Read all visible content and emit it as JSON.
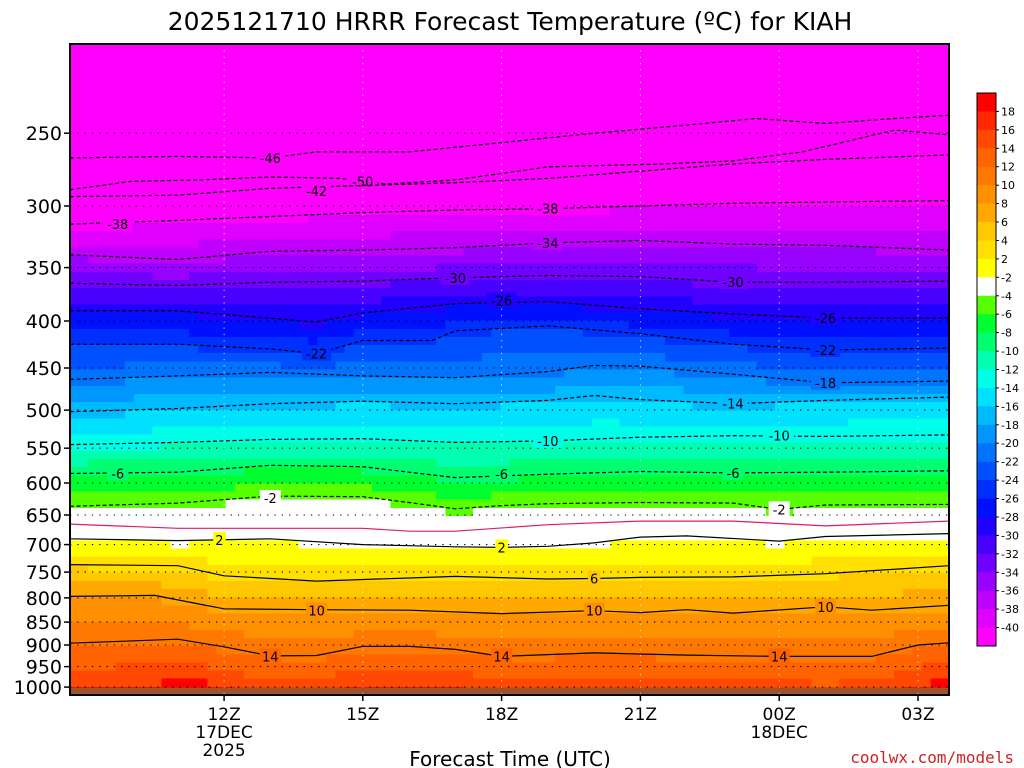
{
  "title": "2025121710 HRRR Forecast Temperature (ºC) for KIAH",
  "xlabel": "Forecast Time (UTC)",
  "watermark": "coolwx.com/models",
  "colors": {
    "watermark": "#cc2222",
    "ground": "#a0522d",
    "zero_line": "#e01a6a"
  },
  "chart_data": {
    "type": "heatmap",
    "title": "2025121710 HRRR Forecast Temperature (ºC) for KIAH",
    "xlabel": "Forecast Time (UTC)",
    "ylabel": "",
    "y_axis_reversed": true,
    "xlim_hours": [
      -3.33,
      15.67
    ],
    "ylim_hpa": [
      1020,
      200
    ],
    "x_ticks": [
      {
        "h": 0,
        "label": "12Z",
        "sub": [
          "17DEC",
          "2025"
        ]
      },
      {
        "h": 3,
        "label": "15Z",
        "sub": []
      },
      {
        "h": 6,
        "label": "18Z",
        "sub": []
      },
      {
        "h": 9,
        "label": "21Z",
        "sub": []
      },
      {
        "h": 12,
        "label": "00Z",
        "sub": [
          "18DEC"
        ]
      },
      {
        "h": 15,
        "label": "03Z",
        "sub": []
      }
    ],
    "y_ticks": [
      250,
      300,
      350,
      400,
      450,
      500,
      550,
      600,
      650,
      700,
      750,
      800,
      850,
      900,
      950,
      1000
    ],
    "grid": true,
    "colorbar": {
      "labels": [
        18,
        16,
        14,
        12,
        10,
        8,
        6,
        4,
        2,
        -2,
        -4,
        -6,
        -8,
        -10,
        -12,
        -14,
        -16,
        -18,
        -20,
        -22,
        -24,
        -26,
        -28,
        -30,
        -32,
        -34,
        -36,
        -38,
        -40
      ],
      "colors": [
        "#ff0000",
        "#ff2800",
        "#ff4800",
        "#ff6400",
        "#ff7800",
        "#ff9000",
        "#ffa800",
        "#ffc800",
        "#ffe000",
        "#ffff00",
        "#ffffff",
        "#58ff00",
        "#00ff30",
        "#00ff70",
        "#00ffb0",
        "#00ffe8",
        "#00e0ff",
        "#00baff",
        "#0096ff",
        "#0074ff",
        "#0050ff",
        "#0030ff",
        "#0010ff",
        "#2000ff",
        "#4800ff",
        "#7000ff",
        "#9800ff",
        "#c000ff",
        "#e000ff",
        "#ff00ff"
      ]
    },
    "contours": [
      {
        "t": -50,
        "style": "dashed",
        "color": "#000000",
        "pts": [
          [
            -3.33,
            288
          ],
          [
            -2,
            282
          ],
          [
            -0.5,
            281
          ],
          [
            1,
            279
          ],
          [
            2.5,
            280
          ],
          [
            3.5,
            284
          ],
          [
            5,
            281
          ],
          [
            7,
            272
          ],
          [
            9.5,
            270
          ],
          [
            11,
            268
          ],
          [
            12.5,
            262
          ],
          [
            14.5,
            248
          ],
          [
            15.67,
            251
          ]
        ],
        "labels": [
          [
            3,
            282
          ]
        ]
      },
      {
        "t": -46,
        "style": "dashed",
        "color": "#000000",
        "pts": [
          [
            -3.33,
            266
          ],
          [
            -1,
            265
          ],
          [
            1,
            266
          ],
          [
            2,
            262
          ],
          [
            4,
            262
          ],
          [
            6,
            256
          ],
          [
            8,
            250
          ],
          [
            10,
            245
          ],
          [
            11.5,
            241
          ],
          [
            13,
            244
          ],
          [
            14.5,
            241
          ],
          [
            15.67,
            239
          ]
        ],
        "labels": [
          [
            1,
            266
          ]
        ]
      },
      {
        "t": -42,
        "style": "dashed",
        "color": "#000000",
        "pts": [
          [
            -3.33,
            293
          ],
          [
            -1,
            292
          ],
          [
            1,
            287
          ],
          [
            3,
            285
          ],
          [
            5,
            283
          ],
          [
            7,
            280
          ],
          [
            9,
            275
          ],
          [
            11,
            270
          ],
          [
            13,
            267
          ],
          [
            15.67,
            264
          ]
        ],
        "labels": [
          [
            2,
            289
          ]
        ]
      },
      {
        "t": -38,
        "style": "dashed",
        "color": "#000000",
        "pts": [
          [
            -3.33,
            314
          ],
          [
            -1,
            311
          ],
          [
            1,
            308
          ],
          [
            3,
            305
          ],
          [
            5,
            303
          ],
          [
            7,
            302
          ],
          [
            9,
            300
          ],
          [
            11,
            298
          ],
          [
            13,
            297
          ],
          [
            15.67,
            296
          ]
        ],
        "labels": [
          [
            -2.3,
            314
          ],
          [
            7,
            302
          ]
        ]
      },
      {
        "t": -34,
        "style": "dashed",
        "color": "#000000",
        "pts": [
          [
            -3.33,
            339
          ],
          [
            -1,
            343
          ],
          [
            1,
            336
          ],
          [
            3,
            335
          ],
          [
            5,
            333
          ],
          [
            7,
            329
          ],
          [
            9,
            327
          ],
          [
            11,
            330
          ],
          [
            13,
            331
          ],
          [
            15.67,
            335
          ]
        ],
        "labels": [
          [
            7,
            329
          ]
        ]
      },
      {
        "t": -30,
        "style": "dashed",
        "color": "#000000",
        "pts": [
          [
            -3.33,
            364
          ],
          [
            -1,
            366
          ],
          [
            1,
            363
          ],
          [
            3,
            362
          ],
          [
            5,
            359
          ],
          [
            7,
            357
          ],
          [
            9,
            358
          ],
          [
            11,
            363
          ],
          [
            13,
            363
          ],
          [
            15.67,
            362
          ]
        ],
        "labels": [
          [
            5,
            359
          ],
          [
            11,
            363
          ]
        ]
      },
      {
        "t": -26,
        "style": "dashed",
        "color": "#000000",
        "pts": [
          [
            -3.33,
            390
          ],
          [
            -1,
            390
          ],
          [
            2,
            401
          ],
          [
            3,
            392
          ],
          [
            5,
            383
          ],
          [
            7,
            381
          ],
          [
            9,
            388
          ],
          [
            11,
            393
          ],
          [
            13,
            397
          ],
          [
            15.67,
            397
          ]
        ],
        "labels": [
          [
            6,
            380
          ],
          [
            13,
            397
          ]
        ]
      },
      {
        "t": -22,
        "style": "dashed",
        "color": "#000000",
        "pts": [
          [
            -3.33,
            424
          ],
          [
            -1,
            424
          ],
          [
            1,
            429
          ],
          [
            2,
            434
          ],
          [
            3,
            420
          ],
          [
            4.5,
            420
          ],
          [
            5,
            410
          ],
          [
            7,
            405
          ],
          [
            9,
            413
          ],
          [
            11,
            424
          ],
          [
            13,
            430
          ],
          [
            15.67,
            428
          ]
        ],
        "labels": [
          [
            2,
            434
          ],
          [
            13,
            430
          ]
        ]
      },
      {
        "t": -18,
        "style": "dashed",
        "color": "#000000",
        "pts": [
          [
            -3.33,
            463
          ],
          [
            -1,
            459
          ],
          [
            1,
            455
          ],
          [
            3,
            459
          ],
          [
            5,
            461
          ],
          [
            7,
            454
          ],
          [
            8,
            447
          ],
          [
            9,
            448
          ],
          [
            11,
            457
          ],
          [
            13,
            467
          ],
          [
            15.67,
            465
          ]
        ],
        "labels": [
          [
            13,
            467
          ]
        ]
      },
      {
        "t": -14,
        "style": "dashed",
        "color": "#000000",
        "pts": [
          [
            -3.33,
            502
          ],
          [
            -1,
            498
          ],
          [
            1,
            492
          ],
          [
            3,
            489
          ],
          [
            5,
            492
          ],
          [
            7,
            488
          ],
          [
            8,
            482
          ],
          [
            9,
            487
          ],
          [
            11,
            492
          ],
          [
            13,
            488
          ],
          [
            15.67,
            484
          ]
        ],
        "labels": [
          [
            11,
            492
          ]
        ]
      },
      {
        "t": -10,
        "style": "dashed",
        "color": "#000000",
        "pts": [
          [
            -3.33,
            545
          ],
          [
            -1,
            542
          ],
          [
            1,
            538
          ],
          [
            3,
            537
          ],
          [
            5,
            542
          ],
          [
            7,
            540
          ],
          [
            9,
            535
          ],
          [
            11,
            533
          ],
          [
            13,
            534
          ],
          [
            15.67,
            532
          ]
        ],
        "labels": [
          [
            7,
            540
          ],
          [
            12,
            533
          ]
        ]
      },
      {
        "t": -6,
        "style": "dashed",
        "color": "#000000",
        "pts": [
          [
            -3.33,
            586
          ],
          [
            -1,
            584
          ],
          [
            1,
            574
          ],
          [
            3,
            576
          ],
          [
            4,
            584
          ],
          [
            5,
            592
          ],
          [
            7,
            587
          ],
          [
            9,
            583
          ],
          [
            11,
            585
          ],
          [
            13,
            584
          ],
          [
            15.67,
            582
          ]
        ],
        "labels": [
          [
            -2.3,
            586
          ],
          [
            6,
            587
          ],
          [
            11,
            585
          ]
        ]
      },
      {
        "t": -2,
        "style": "dashed",
        "color": "#000000",
        "pts": [
          [
            -3.33,
            636
          ],
          [
            -1,
            631
          ],
          [
            1,
            620
          ],
          [
            3,
            621
          ],
          [
            4,
            630
          ],
          [
            5,
            640
          ],
          [
            6,
            635
          ],
          [
            7,
            632
          ],
          [
            9,
            630
          ],
          [
            11,
            631
          ],
          [
            12,
            641
          ],
          [
            13,
            634
          ],
          [
            15.67,
            633
          ]
        ],
        "labels": [
          [
            1,
            623
          ],
          [
            12,
            641
          ]
        ]
      },
      {
        "t": 0,
        "style": "solid",
        "color": "#e01a6a",
        "pts": [
          [
            -3.33,
            665
          ],
          [
            -1,
            672
          ],
          [
            1,
            672
          ],
          [
            3,
            672
          ],
          [
            4,
            677
          ],
          [
            5,
            677
          ],
          [
            7,
            666
          ],
          [
            9,
            660
          ],
          [
            11,
            660
          ],
          [
            13,
            668
          ],
          [
            15.67,
            660
          ]
        ],
        "labels": []
      },
      {
        "t": 2,
        "style": "solid",
        "color": "#000000",
        "pts": [
          [
            -3.33,
            690
          ],
          [
            -1,
            693
          ],
          [
            1,
            690
          ],
          [
            3,
            700
          ],
          [
            4,
            702
          ],
          [
            5,
            704
          ],
          [
            6,
            705
          ],
          [
            7,
            703
          ],
          [
            8,
            697
          ],
          [
            9,
            687
          ],
          [
            10,
            685
          ],
          [
            12,
            694
          ],
          [
            13,
            686
          ],
          [
            15.67,
            681
          ]
        ],
        "labels": [
          [
            -0.1,
            692
          ],
          [
            6,
            705
          ]
        ]
      },
      {
        "t": 6,
        "style": "solid",
        "color": "#000000",
        "pts": [
          [
            -3.33,
            736
          ],
          [
            -1,
            738
          ],
          [
            0,
            757
          ],
          [
            2,
            767
          ],
          [
            4,
            761
          ],
          [
            5,
            758
          ],
          [
            7,
            763
          ],
          [
            8,
            762
          ],
          [
            9,
            760
          ],
          [
            11,
            759
          ],
          [
            13,
            753
          ],
          [
            15.67,
            738
          ]
        ],
        "labels": [
          [
            8,
            762
          ]
        ]
      },
      {
        "t": 10,
        "style": "solid",
        "color": "#000000",
        "pts": [
          [
            -3.33,
            797
          ],
          [
            -1.5,
            795
          ],
          [
            -0.5,
            813
          ],
          [
            0,
            822
          ],
          [
            2,
            824
          ],
          [
            4,
            825
          ],
          [
            6,
            832
          ],
          [
            8,
            826
          ],
          [
            9,
            830
          ],
          [
            10,
            824
          ],
          [
            11,
            831
          ],
          [
            13,
            818
          ],
          [
            14,
            825
          ],
          [
            15.67,
            815
          ]
        ],
        "labels": [
          [
            2,
            826
          ],
          [
            8,
            826
          ],
          [
            13,
            818
          ]
        ]
      },
      {
        "t": 14,
        "style": "solid",
        "color": "#000000",
        "pts": [
          [
            -3.33,
            896
          ],
          [
            -1,
            887
          ],
          [
            0,
            904
          ],
          [
            1,
            925
          ],
          [
            2,
            924
          ],
          [
            3,
            903
          ],
          [
            4,
            903
          ],
          [
            5,
            910
          ],
          [
            6,
            926
          ],
          [
            8,
            918
          ],
          [
            10,
            923
          ],
          [
            12,
            926
          ],
          [
            14,
            926
          ],
          [
            15,
            900
          ],
          [
            15.67,
            895
          ]
        ],
        "labels": [
          [
            1,
            926
          ],
          [
            6,
            926
          ],
          [
            12,
            926
          ]
        ]
      }
    ]
  }
}
